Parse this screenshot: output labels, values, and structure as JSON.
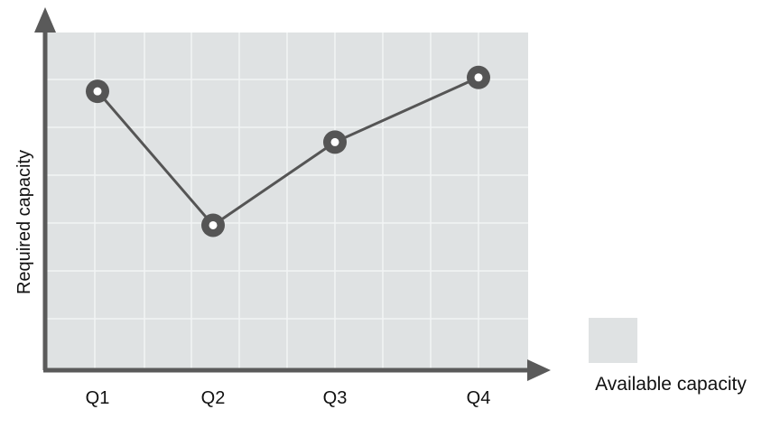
{
  "chart_data": {
    "type": "line",
    "title": "",
    "xlabel": "",
    "ylabel": "Required capacity",
    "categories": [
      "Q1",
      "Q2",
      "Q3",
      "Q4"
    ],
    "series": [
      {
        "values": [
          6,
          3.1,
          4.9,
          6.3
        ]
      }
    ],
    "ylim": [
      0,
      7
    ],
    "y_tick_labels_shown": false,
    "grid": true,
    "legend": {
      "placement": "bottom-right",
      "entries": [
        {
          "label": "Available capacity"
        }
      ]
    },
    "colors": {
      "plot_background": "#dfe2e3",
      "grid": "#f2f4f5",
      "axis": "#5a5a5a",
      "line": "#555555",
      "marker_ring": "#555555",
      "marker_center": "#ffffff",
      "legend_swatch": "#dfe2e3"
    }
  }
}
